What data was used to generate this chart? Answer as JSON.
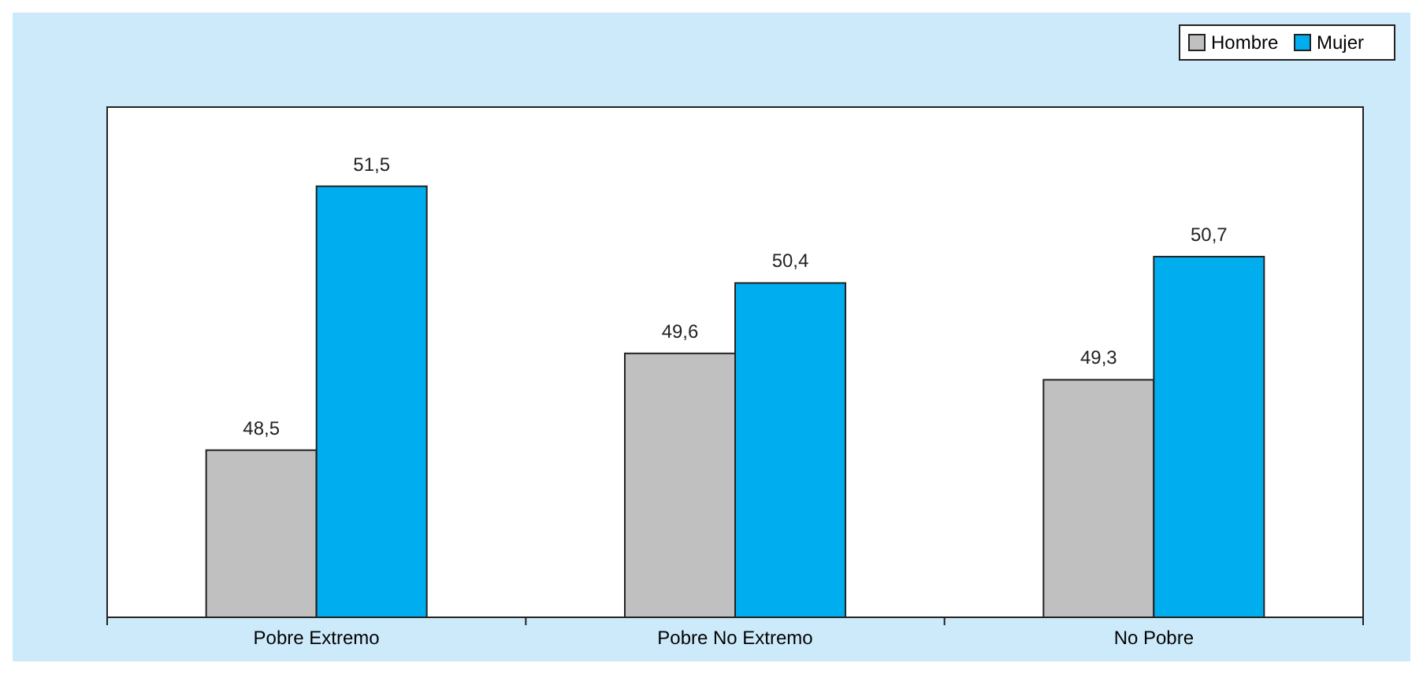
{
  "chart_data": {
    "type": "bar",
    "categories": [
      "Pobre Extremo",
      "Pobre No Extremo",
      "No Pobre"
    ],
    "series": [
      {
        "name": "Hombre",
        "color": "#c0c0c0",
        "values": [
          48.5,
          49.6,
          49.3
        ],
        "value_labels": [
          "48,5",
          "49,6",
          "49,3"
        ]
      },
      {
        "name": "Mujer",
        "color": "#00aeef",
        "values": [
          51.5,
          50.4,
          50.7
        ],
        "value_labels": [
          "51,5",
          "50,4",
          "50,7"
        ]
      }
    ],
    "ylim": [
      46.6,
      52.4
    ],
    "tick_labels": "x",
    "legend": "top right"
  }
}
